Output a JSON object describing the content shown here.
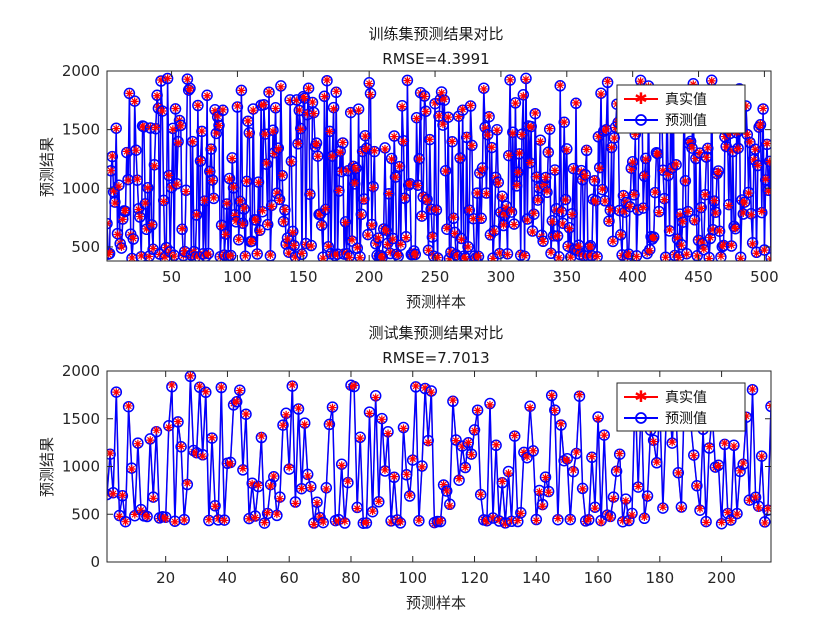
{
  "chart_data": [
    {
      "type": "line",
      "title": "训练集预测结果对比",
      "subtitle": "RMSE=4.3991",
      "xlabel": "预测样本",
      "ylabel": "预测结果",
      "xlim": [
        1,
        505
      ],
      "ylim": [
        380,
        2000
      ],
      "xticks": [
        50,
        100,
        150,
        200,
        250,
        300,
        350,
        400,
        450,
        500
      ],
      "yticks": [
        500,
        1000,
        1500,
        2000
      ],
      "legend_position": "top-right",
      "seed": 7,
      "n_samples": 505,
      "series": [
        {
          "name": "真实值",
          "color": "#ff0000",
          "marker": "asterisk"
        },
        {
          "name": "预测值",
          "color": "#0000ff",
          "marker": "circle"
        }
      ]
    },
    {
      "type": "line",
      "title": "测试集预测结果对比",
      "subtitle": "RMSE=7.7013",
      "xlabel": "预测样本",
      "ylabel": "预测结果",
      "xlim": [
        1,
        216
      ],
      "ylim": [
        0,
        2000
      ],
      "xticks": [
        20,
        40,
        60,
        80,
        100,
        120,
        140,
        160,
        180,
        200
      ],
      "yticks": [
        0,
        500,
        1000,
        1500,
        2000
      ],
      "legend_position": "top-right",
      "seed": 23,
      "n_samples": 216,
      "series": [
        {
          "name": "真实值",
          "color": "#ff0000",
          "marker": "asterisk"
        },
        {
          "name": "预测值",
          "color": "#0000ff",
          "marker": "circle"
        }
      ]
    }
  ]
}
